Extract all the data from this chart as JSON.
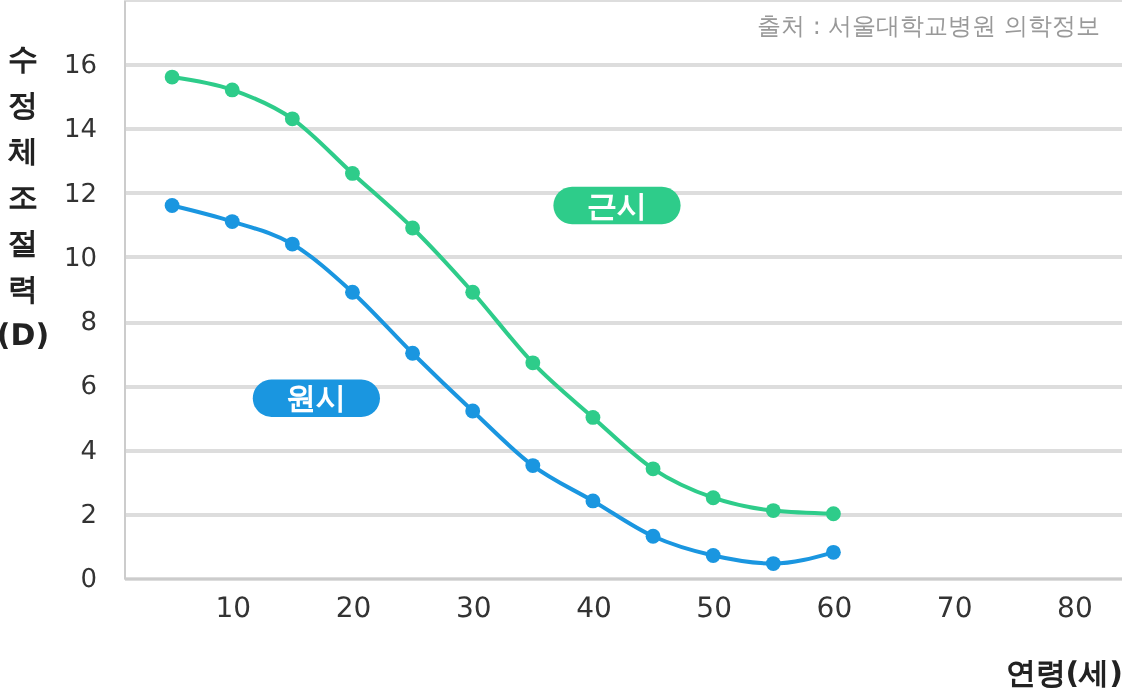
{
  "chart_data": {
    "type": "line",
    "xlabel": "연령(세)",
    "ylabel": "수정체 조절력 (D)",
    "annotations": [
      "출처 : 서울대학교병원 의학정보"
    ],
    "x": [
      5,
      10,
      15,
      20,
      25,
      30,
      35,
      40,
      45,
      50,
      55,
      60
    ],
    "series": [
      {
        "name": "근시",
        "color": "#2ecc8a",
        "values": [
          15.6,
          15.2,
          14.3,
          12.6,
          10.9,
          8.9,
          6.7,
          5.0,
          3.4,
          2.5,
          2.1,
          2.0
        ]
      },
      {
        "name": "원시",
        "color": "#1a96e0",
        "values": [
          11.6,
          11.1,
          10.4,
          8.9,
          7.0,
          5.2,
          3.5,
          2.4,
          1.3,
          0.7,
          0.45,
          0.8
        ]
      }
    ],
    "xlim": [
      1,
      84
    ],
    "xticks": [
      10,
      20,
      30,
      40,
      50,
      60,
      70,
      80
    ],
    "ylim": [
      0,
      18
    ],
    "yticks": [
      0,
      2,
      4,
      6,
      8,
      10,
      12,
      14,
      16
    ],
    "grid": "y",
    "marker": "circle",
    "line_style": "solid",
    "legend": false
  }
}
